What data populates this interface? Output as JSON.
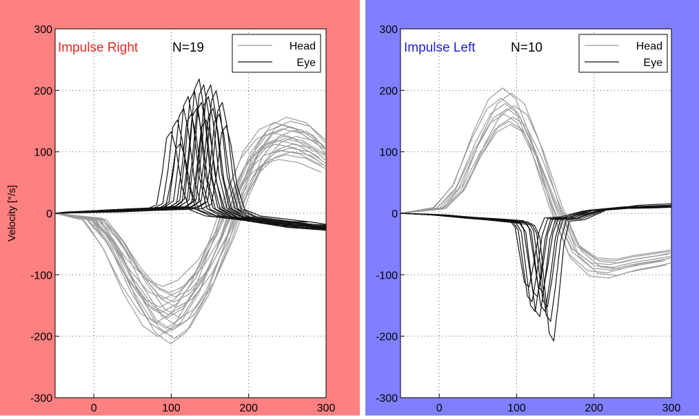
{
  "ylabel": "Velocity [°/s]",
  "chart_data": [
    {
      "type": "line",
      "title": "Impulse Right",
      "count_label": "N=19",
      "title_color": "#e8261f",
      "panel_color": "#ff8080",
      "xlim": [
        -50,
        300
      ],
      "ylim": [
        -300,
        300
      ],
      "xticks": [
        0,
        100,
        200,
        300
      ],
      "yticks": [
        -300,
        -200,
        -100,
        0,
        100,
        200,
        300
      ],
      "grid": true,
      "legend": {
        "position": "top-right",
        "entries": [
          "Head",
          "Eye"
        ]
      },
      "series": [
        {
          "name": "Head",
          "color": "#999999",
          "base": [
            [
              -50,
              0
            ],
            [
              0,
              -10
            ],
            [
              25,
              -50
            ],
            [
              50,
              -110
            ],
            [
              75,
              -155
            ],
            [
              95,
              -170
            ],
            [
              115,
              -155
            ],
            [
              140,
              -110
            ],
            [
              165,
              -40
            ],
            [
              185,
              30
            ],
            [
              205,
              85
            ],
            [
              225,
              115
            ],
            [
              245,
              125
            ],
            [
              270,
              118
            ],
            [
              300,
              95
            ]
          ],
          "variants": [
            {
              "dx": 0,
              "ay": 1.0
            },
            {
              "dx": -12,
              "ay": 1.18
            },
            {
              "dx": -5,
              "ay": 0.82
            },
            {
              "dx": 6,
              "ay": 1.12
            },
            {
              "dx": 12,
              "ay": 0.9
            },
            {
              "dx": -8,
              "ay": 0.95
            },
            {
              "dx": 9,
              "ay": 1.2
            },
            {
              "dx": 3,
              "ay": 0.76
            },
            {
              "dx": -15,
              "ay": 1.05
            },
            {
              "dx": 16,
              "ay": 1.0
            },
            {
              "dx": -2,
              "ay": 1.1
            },
            {
              "dx": 8,
              "ay": 0.85
            },
            {
              "dx": -10,
              "ay": 0.9
            },
            {
              "dx": 4,
              "ay": 1.25
            },
            {
              "dx": 13,
              "ay": 1.08
            },
            {
              "dx": -6,
              "ay": 0.7
            },
            {
              "dx": 1,
              "ay": 0.97
            },
            {
              "dx": -3,
              "ay": 1.15
            },
            {
              "dx": 10,
              "ay": 0.8
            }
          ]
        },
        {
          "name": "Eye",
          "color": "#111111",
          "base": [
            [
              -50,
              0
            ],
            [
              0,
              3
            ],
            [
              40,
              6
            ],
            [
              80,
              8
            ],
            [
              105,
              10
            ],
            [
              117,
              20
            ],
            [
              124,
              90
            ],
            [
              130,
              175
            ],
            [
              136,
              190
            ],
            [
              142,
              150
            ],
            [
              150,
              60
            ],
            [
              160,
              8
            ],
            [
              180,
              -6
            ],
            [
              210,
              -12
            ],
            [
              250,
              -20
            ],
            [
              300,
              -24
            ]
          ],
          "variants": [
            {
              "dx": -36,
              "ay": 0.7
            },
            {
              "dx": -28,
              "ay": 0.8
            },
            {
              "dx": -20,
              "ay": 0.9
            },
            {
              "dx": -14,
              "ay": 1.0
            },
            {
              "dx": -10,
              "ay": 0.85
            },
            {
              "dx": -6,
              "ay": 1.05
            },
            {
              "dx": -3,
              "ay": 0.9
            },
            {
              "dx": 0,
              "ay": 1.15
            },
            {
              "dx": 3,
              "ay": 0.95
            },
            {
              "dx": 6,
              "ay": 1.1
            },
            {
              "dx": 9,
              "ay": 0.8
            },
            {
              "dx": 12,
              "ay": 1.0
            },
            {
              "dx": 15,
              "ay": 1.1
            },
            {
              "dx": 18,
              "ay": 0.9
            },
            {
              "dx": 22,
              "ay": 1.05
            },
            {
              "dx": 26,
              "ay": 0.85
            },
            {
              "dx": 30,
              "ay": 0.95
            },
            {
              "dx": 35,
              "ay": 0.75
            },
            {
              "dx": -24,
              "ay": 0.6
            }
          ]
        }
      ]
    },
    {
      "type": "line",
      "title": "Impulse Left",
      "count_label": "N=10",
      "title_color": "#2020d8",
      "panel_color": "#8080ff",
      "xlim": [
        -50,
        300
      ],
      "ylim": [
        -300,
        300
      ],
      "xticks": [
        0,
        100,
        200,
        300
      ],
      "yticks": [
        -300,
        -200,
        -100,
        0,
        100,
        200,
        300
      ],
      "grid": true,
      "legend": {
        "position": "top-right",
        "entries": [
          "Head",
          "Eye"
        ]
      },
      "series": [
        {
          "name": "Head",
          "color": "#999999",
          "base": [
            [
              -50,
              0
            ],
            [
              0,
              8
            ],
            [
              25,
              40
            ],
            [
              50,
              110
            ],
            [
              70,
              155
            ],
            [
              88,
              170
            ],
            [
              105,
              155
            ],
            [
              125,
              100
            ],
            [
              150,
              10
            ],
            [
              175,
              -60
            ],
            [
              200,
              -85
            ],
            [
              225,
              -88
            ],
            [
              250,
              -80
            ],
            [
              275,
              -75
            ],
            [
              300,
              -70
            ]
          ],
          "variants": [
            {
              "dx": 0,
              "ay": 1.0
            },
            {
              "dx": -6,
              "ay": 1.2
            },
            {
              "dx": 4,
              "ay": 0.85
            },
            {
              "dx": -3,
              "ay": 1.05
            },
            {
              "dx": 7,
              "ay": 0.92
            },
            {
              "dx": -8,
              "ay": 1.1
            },
            {
              "dx": 2,
              "ay": 0.88
            },
            {
              "dx": 9,
              "ay": 1.03
            },
            {
              "dx": -4,
              "ay": 0.95
            },
            {
              "dx": 5,
              "ay": 1.15
            }
          ]
        },
        {
          "name": "Eye",
          "color": "#111111",
          "base": [
            [
              -50,
              0
            ],
            [
              0,
              -3
            ],
            [
              40,
              -8
            ],
            [
              80,
              -12
            ],
            [
              105,
              -15
            ],
            [
              112,
              -30
            ],
            [
              118,
              -90
            ],
            [
              124,
              -150
            ],
            [
              130,
              -160
            ],
            [
              136,
              -110
            ],
            [
              143,
              -40
            ],
            [
              150,
              -10
            ],
            [
              170,
              -8
            ],
            [
              200,
              5
            ],
            [
              240,
              10
            ],
            [
              300,
              12
            ]
          ],
          "variants": [
            {
              "dx": -10,
              "ay": 0.9
            },
            {
              "dx": -6,
              "ay": 1.0
            },
            {
              "dx": -3,
              "ay": 0.85
            },
            {
              "dx": 0,
              "ay": 1.05
            },
            {
              "dx": 4,
              "ay": 0.8
            },
            {
              "dx": 7,
              "ay": 1.0
            },
            {
              "dx": 10,
              "ay": 0.95
            },
            {
              "dx": 14,
              "ay": 1.1
            },
            {
              "dx": 18,
              "ay": 1.3
            },
            {
              "dx": -14,
              "ay": 0.75
            }
          ]
        }
      ]
    }
  ]
}
